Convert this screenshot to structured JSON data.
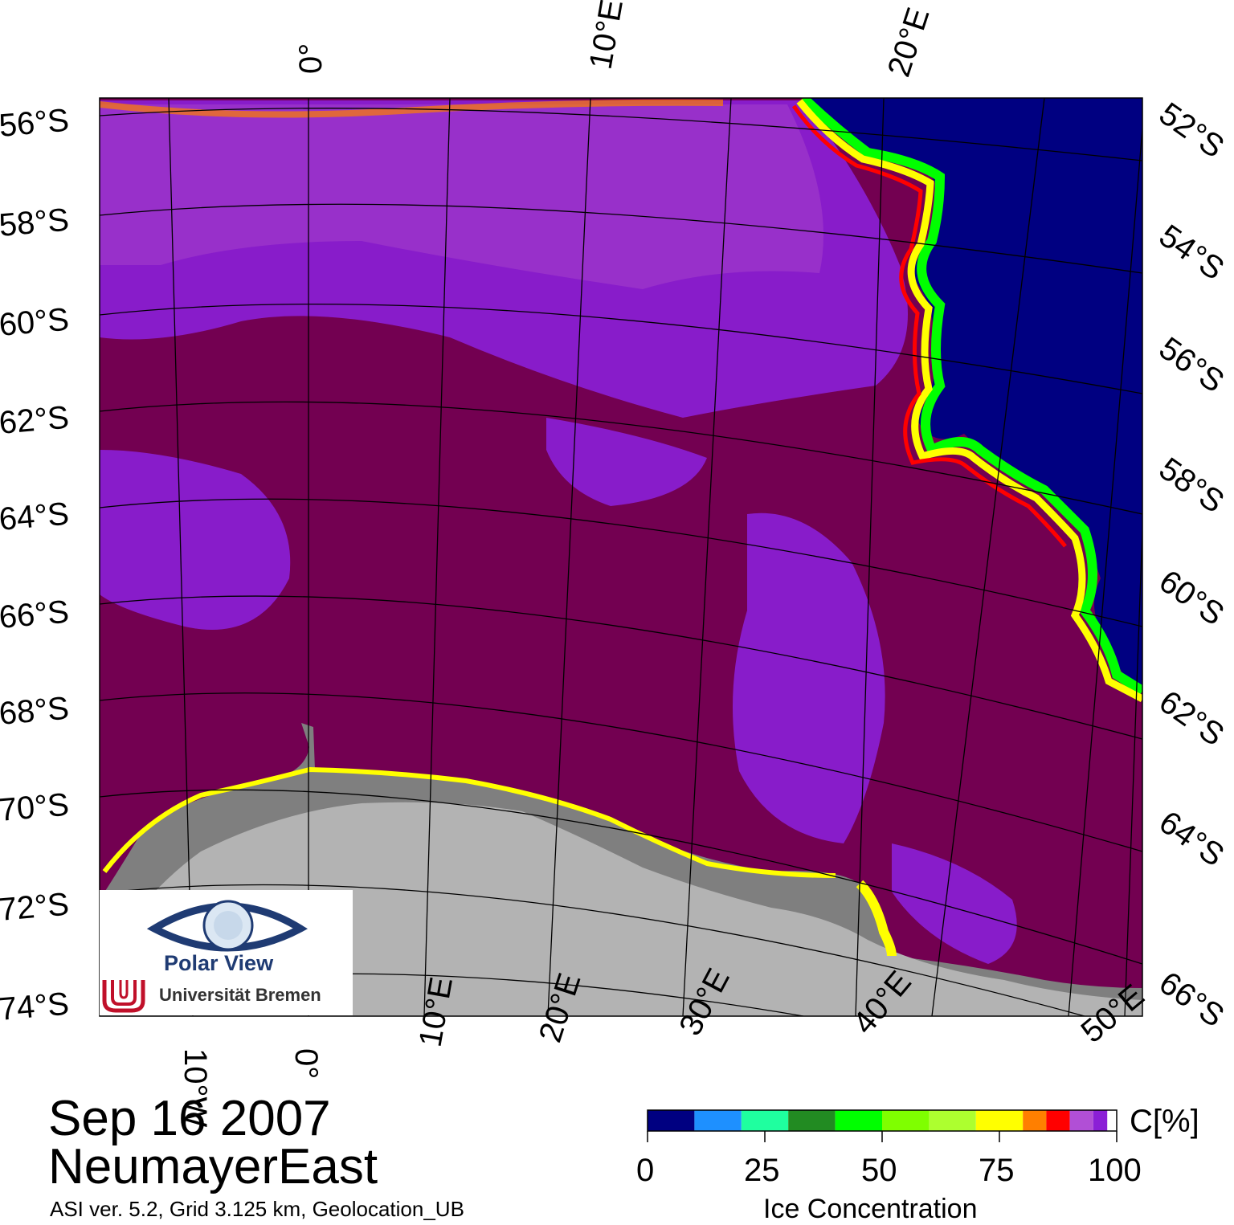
{
  "title": {
    "date": "Sep 16 2007",
    "region": "NeumayerEast",
    "footnote": "ASI ver. 5.2,  Grid 3.125 km, Geolocation_UB"
  },
  "map": {
    "top_lon_labels": [
      "0°",
      "10°E",
      "20°E"
    ],
    "bottom_lon_labels": [
      "10°W",
      "0°",
      "10°E",
      "20°E",
      "30°E",
      "40°E",
      "50°E"
    ],
    "left_lat_labels": [
      "56°S",
      "58°S",
      "60°S",
      "62°S",
      "64°S",
      "66°S",
      "68°S",
      "70°S",
      "72°S",
      "74°S"
    ],
    "right_lat_labels": [
      "52°S",
      "54°S",
      "56°S",
      "58°S",
      "60°S",
      "62°S",
      "64°S",
      "66°S"
    ],
    "colors": {
      "ice_100": "#730051",
      "ice_90": "#8b1fd6",
      "ice_95": "#b14fd6",
      "open_ocean": "#000081",
      "land": "#b3b3b3",
      "ice_shelf": "#7f7f7f"
    }
  },
  "colorbar": {
    "unit_label": "C[%]",
    "axis_label": "Ice Concentration",
    "tick_labels": [
      "0",
      "25",
      "50",
      "75",
      "100"
    ],
    "colors": [
      "#000081",
      "#1e90ff",
      "#1fff9f",
      "#228b22",
      "#00ff00",
      "#7fff00",
      "#adff2f",
      "#ffff00",
      "#ff7f00",
      "#ff0000",
      "#b14fd6",
      "#8b1fd6",
      "#ffffff"
    ]
  },
  "logo": {
    "line1": "Polar View",
    "line2": "Universität Bremen"
  }
}
